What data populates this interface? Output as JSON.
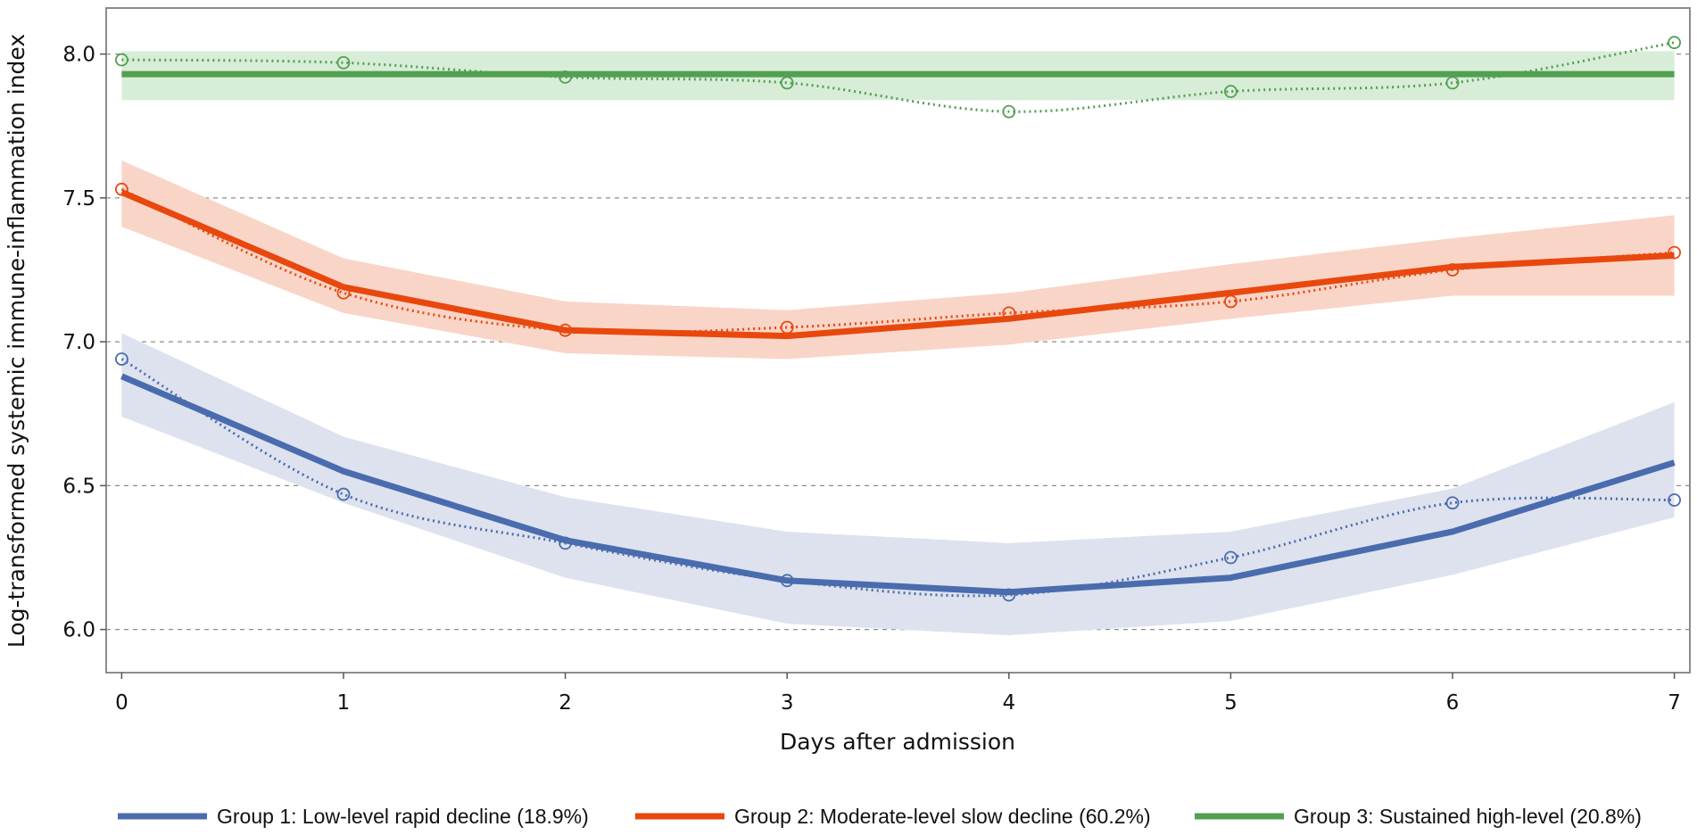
{
  "chart_data": {
    "type": "line",
    "title": "",
    "xlabel": "Days after admission",
    "ylabel": "Log-transformed systemic immune-inflammation index",
    "x": [
      0,
      1,
      2,
      3,
      4,
      5,
      6,
      7
    ],
    "xticks": [
      "0",
      "1",
      "2",
      "3",
      "4",
      "5",
      "6",
      "7"
    ],
    "yticks": [
      "6.0",
      "6.5",
      "7.0",
      "7.5",
      "8.0"
    ],
    "ytick_values": [
      6.0,
      6.5,
      7.0,
      7.5,
      8.0
    ],
    "xlim": [
      -0.07,
      7.07
    ],
    "ylim": [
      5.85,
      8.16
    ],
    "grid": "horizontal dashed",
    "legend_position": "bottom",
    "series": [
      {
        "name": "Group 1: Low-level rapid decline (18.9%)",
        "color": "#4a6cae",
        "band_color": "#dde2ee",
        "fitted": [
          6.88,
          6.55,
          6.31,
          6.17,
          6.13,
          6.18,
          6.34,
          6.58
        ],
        "ci_lower": [
          6.74,
          6.44,
          6.18,
          6.02,
          5.98,
          6.03,
          6.19,
          6.39
        ],
        "ci_upper": [
          7.03,
          6.67,
          6.46,
          6.34,
          6.3,
          6.34,
          6.49,
          6.79
        ],
        "observed": [
          6.94,
          6.47,
          6.3,
          6.17,
          6.12,
          6.25,
          6.44,
          6.45
        ]
      },
      {
        "name": "Group 2: Moderate-level slow decline (60.2%)",
        "color": "#e8480e",
        "band_color": "#f9d5c8",
        "fitted": [
          7.52,
          7.19,
          7.04,
          7.02,
          7.08,
          7.17,
          7.26,
          7.3
        ],
        "ci_lower": [
          7.4,
          7.1,
          6.96,
          6.94,
          6.99,
          7.08,
          7.16,
          7.16
        ],
        "ci_upper": [
          7.63,
          7.29,
          7.14,
          7.11,
          7.17,
          7.27,
          7.36,
          7.44
        ],
        "observed": [
          7.53,
          7.17,
          7.04,
          7.05,
          7.1,
          7.14,
          7.25,
          7.31
        ]
      },
      {
        "name": "Group 3: Sustained high-level (20.8%)",
        "color": "#52a052",
        "band_color": "#d8edd8",
        "fitted": [
          7.93,
          7.93,
          7.93,
          7.93,
          7.93,
          7.93,
          7.93,
          7.93
        ],
        "ci_lower": [
          7.84,
          7.84,
          7.84,
          7.84,
          7.84,
          7.84,
          7.84,
          7.84
        ],
        "ci_upper": [
          8.01,
          8.01,
          8.01,
          8.01,
          8.01,
          8.01,
          8.01,
          8.01
        ],
        "observed": [
          7.98,
          7.97,
          7.92,
          7.9,
          7.8,
          7.87,
          7.9,
          8.04
        ]
      }
    ]
  },
  "colors": {
    "frame": "#8c8c8c",
    "grid": "#8c8c8c"
  }
}
